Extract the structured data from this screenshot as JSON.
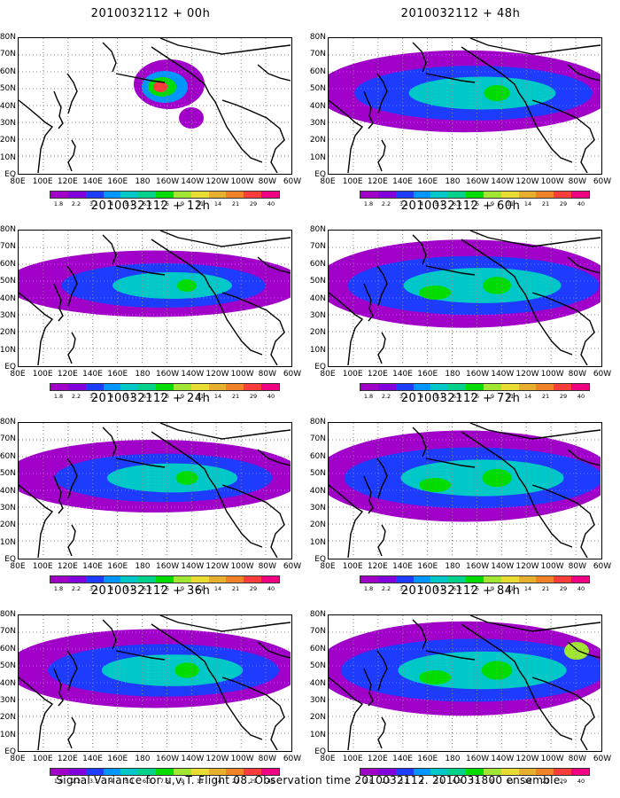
{
  "panels": [
    {
      "title": "2010032112 + 00h",
      "intensity": 0.35,
      "peak": true
    },
    {
      "title": "2010032112 + 48h",
      "intensity": 0.75
    },
    {
      "title": "2010032112 + 12h",
      "intensity": 0.5
    },
    {
      "title": "2010032112 + 60h",
      "intensity": 0.85
    },
    {
      "title": "2010032112 + 24h",
      "intensity": 0.6
    },
    {
      "title": "2010032112 + 72h",
      "intensity": 0.9
    },
    {
      "title": "2010032112 + 36h",
      "intensity": 0.7
    },
    {
      "title": "2010032112 + 84h",
      "intensity": 0.95
    }
  ],
  "lat_labels": [
    "80N",
    "70N",
    "60N",
    "50N",
    "40N",
    "30N",
    "20N",
    "10N",
    "EQ"
  ],
  "lon_labels": [
    "80E",
    "100E",
    "120E",
    "140E",
    "160E",
    "180",
    "160W",
    "140W",
    "120W",
    "100W",
    "80W",
    "60W"
  ],
  "colorbar": {
    "colors": [
      "#a000c8",
      "#8200dc",
      "#1e3cff",
      "#0096ff",
      "#00c8c8",
      "#00d28c",
      "#00dc00",
      "#a0e632",
      "#e6dc32",
      "#e6af2d",
      "#f08228",
      "#fa3c3c",
      "#f00082"
    ],
    "labels": [
      "1.8",
      "2.2",
      "3.1",
      "4",
      "5.1",
      "6.3",
      "7.5",
      "9",
      "11",
      "14",
      "21",
      "29",
      "40"
    ]
  },
  "caption": "Signal Variance for u,v,T. Flight 08. Observation time 2010032112. 2010031800 ensemble."
}
